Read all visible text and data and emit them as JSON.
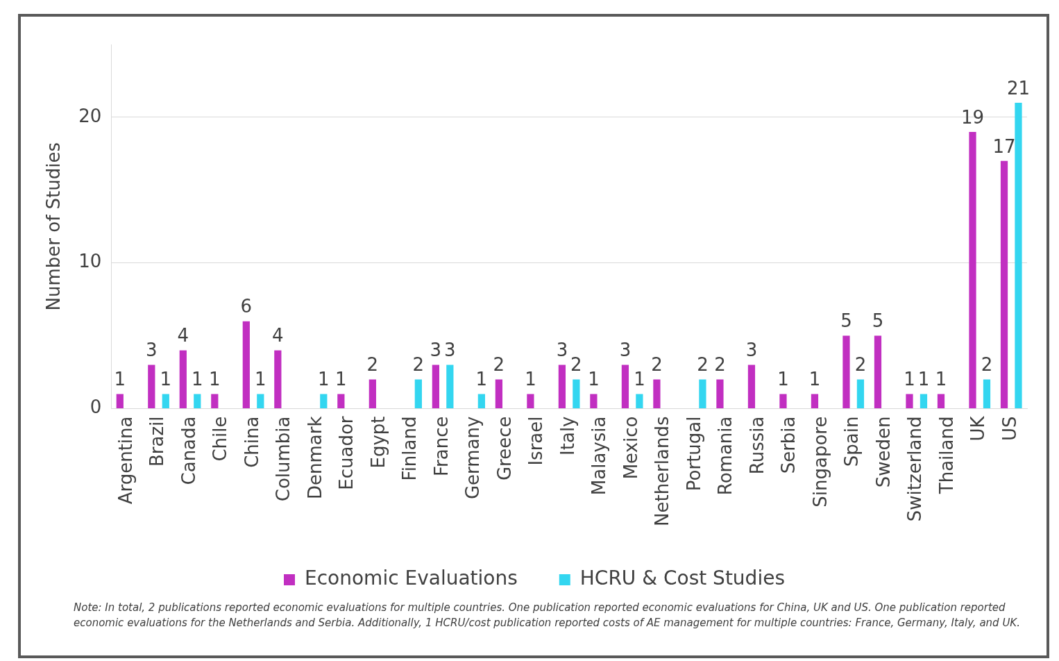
{
  "chart_data": {
    "type": "bar",
    "ylabel": "Number of Studies",
    "categories": [
      "Argentina",
      "Brazil",
      "Canada",
      "Chile",
      "China",
      "Columbia",
      "Denmark",
      "Ecuador",
      "Egypt",
      "Finland",
      "France",
      "Germany",
      "Greece",
      "Israel",
      "Italy",
      "Malaysia",
      "Mexico",
      "Netherlands",
      "Portugal",
      "Romania",
      "Russia",
      "Serbia",
      "Singapore",
      "Spain",
      "Sweden",
      "Switzerland",
      "Thailand",
      "UK",
      "US"
    ],
    "series": [
      {
        "name": "Economic Evaluations",
        "color": "#c12fc1",
        "values": [
          1,
          3,
          4,
          1,
          6,
          4,
          null,
          1,
          2,
          null,
          3,
          null,
          2,
          1,
          3,
          1,
          3,
          2,
          null,
          2,
          3,
          1,
          1,
          5,
          5,
          1,
          1,
          19,
          17
        ]
      },
      {
        "name": "HCRU & Cost Studies",
        "color": "#33d6f0",
        "values": [
          null,
          1,
          1,
          null,
          1,
          null,
          1,
          null,
          null,
          2,
          3,
          1,
          null,
          null,
          2,
          null,
          1,
          null,
          2,
          null,
          null,
          null,
          null,
          2,
          null,
          1,
          null,
          2,
          21
        ]
      }
    ],
    "ylim": [
      0,
      25
    ],
    "yticks": [
      0,
      10,
      20
    ],
    "grid": "y",
    "legend": "bottom",
    "data_labels": true,
    "annotations": [
      "Note: In total, 2 publications reported economic evaluations for multiple countries. One publication reported  economic evaluations for China, UK and US. One publication reported economic evaluations for the Netherlands and Serbia. Additionally, 1 HCRU/cost publication reported costs of AE management for multiple countries: France, Germany, Italy, and UK."
    ]
  }
}
